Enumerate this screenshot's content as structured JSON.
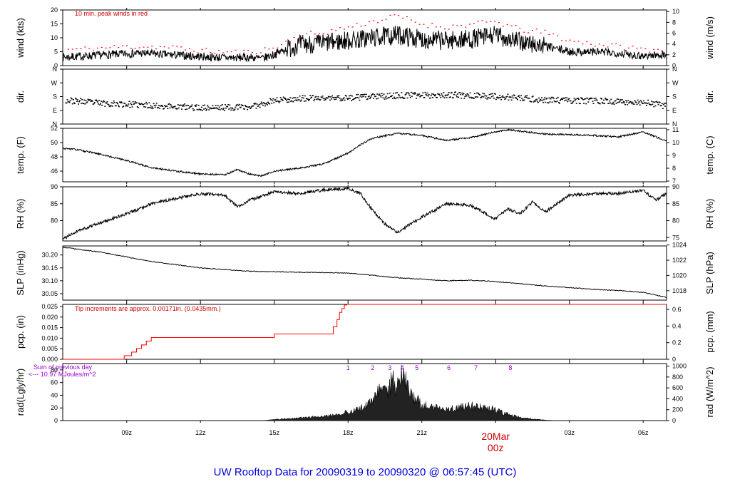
{
  "title": "UW Rooftop Data for 20090319  to  20090320 @ 06:57:45  (UTC)",
  "colors": {
    "trace": "#000000",
    "peak": "#ff0000",
    "pcp": "#ff0000",
    "note": "#cc0000",
    "rad_note": "#9900cc",
    "title": "#0000dd"
  },
  "x_axis": {
    "range_hours": [
      6.4,
      30.95
    ],
    "ticks": [
      {
        "hour": 9,
        "label": "09z"
      },
      {
        "hour": 12,
        "label": "12z"
      },
      {
        "hour": 15,
        "label": "15z"
      },
      {
        "hour": 18,
        "label": "18z"
      },
      {
        "hour": 21,
        "label": "21z"
      },
      {
        "hour": 24,
        "label": ""
      },
      {
        "hour": 27,
        "label": "03z"
      },
      {
        "hour": 30,
        "label": "06z"
      }
    ],
    "date_label": "20Mar",
    "date_sublabel": "00z"
  },
  "chart_data": [
    {
      "type": "line",
      "panel": "wind",
      "ylabel_left": "wind (kts)",
      "ylabel_right": "wind (m/s)",
      "ylim": [
        0,
        20
      ],
      "yticks_left": [
        0,
        5,
        10,
        15,
        20
      ],
      "yticks_right": [
        0,
        2,
        4,
        6,
        8,
        10
      ],
      "note": "10 min. peak winds in red",
      "series": [
        {
          "x": [
            6.4,
            7.5,
            8.5,
            9.5,
            10.5,
            11.5,
            12.5,
            13.5,
            14,
            14.5,
            15,
            15.5,
            16,
            17,
            18,
            19,
            20,
            21,
            22,
            23,
            24,
            25,
            26,
            27,
            28,
            29,
            30,
            30.95
          ],
          "y": [
            3,
            3.5,
            4,
            4.5,
            4,
            3.5,
            3,
            2.8,
            3,
            2.5,
            4,
            6,
            7.5,
            8,
            9,
            10,
            11,
            9.5,
            9,
            9.5,
            11,
            8.5,
            7,
            5,
            5,
            4.5,
            3.5,
            4
          ]
        },
        {
          "name": "10 min. peak winds",
          "x": [
            7,
            8,
            9,
            10,
            11,
            12,
            13,
            14,
            15,
            16,
            17,
            18,
            19,
            20,
            21,
            22,
            23,
            24,
            25,
            26,
            27,
            28,
            29,
            30
          ],
          "y": [
            6,
            6.5,
            7,
            7,
            6.5,
            5.5,
            5,
            5,
            6.5,
            11,
            12,
            14,
            16,
            18,
            15,
            14,
            15,
            16,
            13,
            12,
            9,
            8,
            7,
            6
          ]
        }
      ]
    },
    {
      "type": "scatter",
      "panel": "dir",
      "ylabel_left": "dir.",
      "ylabel_right": "dir.",
      "yticks": [
        "N",
        "E",
        "S",
        "W",
        "N"
      ],
      "ylim": [
        0,
        360
      ],
      "series": [
        {
          "x": [
            6.4,
            8,
            10,
            12,
            14,
            15,
            16,
            18,
            20,
            22,
            24,
            26,
            28,
            30,
            30.95
          ],
          "y": [
            160,
            140,
            125,
            110,
            115,
            160,
            170,
            175,
            190,
            195,
            185,
            160,
            155,
            145,
            120
          ]
        }
      ]
    },
    {
      "type": "line",
      "panel": "temp",
      "ylabel_left": "temp. (F)",
      "ylabel_right": "temp. (C)",
      "ylim": [
        44.5,
        52
      ],
      "yticks_left": [
        46,
        48,
        50,
        52
      ],
      "yticks_right": [
        7,
        8,
        9,
        10,
        11
      ],
      "series": [
        {
          "x": [
            6.4,
            7,
            8,
            9,
            10,
            11,
            12,
            13,
            13.5,
            14,
            14.5,
            15,
            16,
            17,
            18,
            18.5,
            19,
            20,
            21,
            22,
            23,
            24,
            24.5,
            25,
            26,
            27,
            28,
            29,
            30,
            30.95
          ],
          "y": [
            49.2,
            49,
            48.3,
            47.5,
            46.5,
            46,
            45.6,
            45.5,
            46.2,
            45.6,
            45.3,
            46,
            46.4,
            47,
            48.5,
            49.7,
            50.6,
            51.3,
            51,
            50.3,
            50.7,
            51.5,
            51.8,
            51.6,
            51.2,
            51.1,
            51,
            50.8,
            51.5,
            50.2
          ]
        }
      ]
    },
    {
      "type": "line",
      "panel": "rh",
      "ylabel_left": "RH (%)",
      "ylabel_right": "RH (%)",
      "ylim": [
        74,
        90
      ],
      "yticks_left": [
        80,
        85,
        90
      ],
      "yticks_right": [
        75,
        80,
        85,
        90
      ],
      "series": [
        {
          "x": [
            6.4,
            7,
            8,
            9,
            10,
            11,
            12,
            13,
            13.5,
            14,
            15,
            16,
            17,
            18,
            18.5,
            19,
            19.5,
            20,
            21,
            22,
            23,
            24,
            24.5,
            25,
            25.5,
            26,
            27,
            28,
            29,
            30,
            30.5,
            30.95
          ],
          "y": [
            74.5,
            77,
            79.5,
            82,
            85,
            86.5,
            88,
            87.5,
            84,
            86,
            88.5,
            88,
            89,
            89.5,
            88,
            83,
            79,
            76.5,
            81,
            85,
            84.5,
            80.5,
            83.5,
            82,
            85.5,
            82.5,
            87.5,
            88,
            88,
            89,
            86,
            88
          ]
        }
      ]
    },
    {
      "type": "line",
      "panel": "slp",
      "ylabel_left": "SLP (inHg)",
      "ylabel_right": "SLP (hPa)",
      "ylim": [
        30.025,
        30.235
      ],
      "yticks_left": [
        30.05,
        30.1,
        30.15,
        30.2
      ],
      "yticks_right": [
        1018,
        1020,
        1022,
        1024
      ],
      "series": [
        {
          "x": [
            6.4,
            8,
            10,
            12,
            14,
            16,
            18,
            20,
            22,
            23,
            24,
            26,
            28,
            29,
            30,
            30.5,
            30.95
          ],
          "y": [
            30.23,
            30.21,
            30.175,
            30.15,
            30.137,
            30.133,
            30.13,
            30.112,
            30.1,
            30.102,
            30.097,
            30.08,
            30.067,
            30.062,
            30.055,
            30.045,
            30.035
          ]
        }
      ]
    },
    {
      "type": "line",
      "panel": "pcp",
      "ylabel_left": "pcp. (in)",
      "ylabel_right": "pcp. (mm)",
      "ylim": [
        0,
        0.026
      ],
      "yticks_left": [
        0.0,
        0.005,
        0.01,
        0.015,
        0.02,
        0.025
      ],
      "yticks_right": [
        0,
        0.2,
        0.4,
        0.6
      ],
      "note": "Tip increments are approx. 0.00171in. (0.0435mm.)",
      "series": [
        {
          "x": [
            6.4,
            8.9,
            8.9,
            9.2,
            9.2,
            9.4,
            9.4,
            9.6,
            9.6,
            9.8,
            9.8,
            10,
            10,
            15,
            15,
            17.4,
            17.4,
            17.55,
            17.55,
            17.65,
            17.65,
            17.75,
            17.75,
            17.85,
            17.85,
            17.95,
            17.95,
            30.95
          ],
          "y": [
            0,
            0,
            0.0017,
            0.0017,
            0.0034,
            0.0034,
            0.0051,
            0.0051,
            0.0068,
            0.0068,
            0.0086,
            0.0086,
            0.0103,
            0.0103,
            0.012,
            0.012,
            0.0154,
            0.0154,
            0.0188,
            0.0188,
            0.0222,
            0.0222,
            0.024,
            0.024,
            0.0257,
            0.0257,
            0.026,
            0.026
          ]
        }
      ]
    },
    {
      "type": "area",
      "panel": "rad",
      "ylabel_left": "rad(Lgly/hr)",
      "ylabel_right": "rad (W/m^2)",
      "ylim": [
        0,
        90
      ],
      "yticks_left": [
        0,
        20,
        40,
        60,
        80
      ],
      "yticks_right": [
        0,
        200,
        400,
        600,
        800,
        1000
      ],
      "note_line1": "Sum of previous day",
      "note_line2": "<--- 10.97 MJoules/m^2",
      "markers": [
        {
          "hour": 18,
          "label": "1"
        },
        {
          "hour": 19,
          "label": "2"
        },
        {
          "hour": 19.7,
          "label": "3"
        },
        {
          "hour": 20.2,
          "label": "4"
        },
        {
          "hour": 20.8,
          "label": "5"
        },
        {
          "hour": 22.1,
          "label": "6"
        },
        {
          "hour": 23.2,
          "label": "7"
        },
        {
          "hour": 24.6,
          "label": "8"
        }
      ],
      "series": [
        {
          "x": [
            14.5,
            15,
            16,
            17,
            17.5,
            18,
            18.5,
            19,
            19.3,
            19.6,
            19.8,
            20,
            20.2,
            20.4,
            20.6,
            21,
            21.5,
            22,
            22.5,
            23,
            23.5,
            24,
            24.5,
            25,
            25.5,
            26,
            26.5
          ],
          "y": [
            0,
            2,
            5,
            8,
            12,
            16,
            22,
            35,
            60,
            55,
            75,
            60,
            85,
            70,
            50,
            30,
            25,
            20,
            25,
            28,
            25,
            20,
            12,
            6,
            3,
            1,
            0
          ]
        }
      ]
    }
  ]
}
